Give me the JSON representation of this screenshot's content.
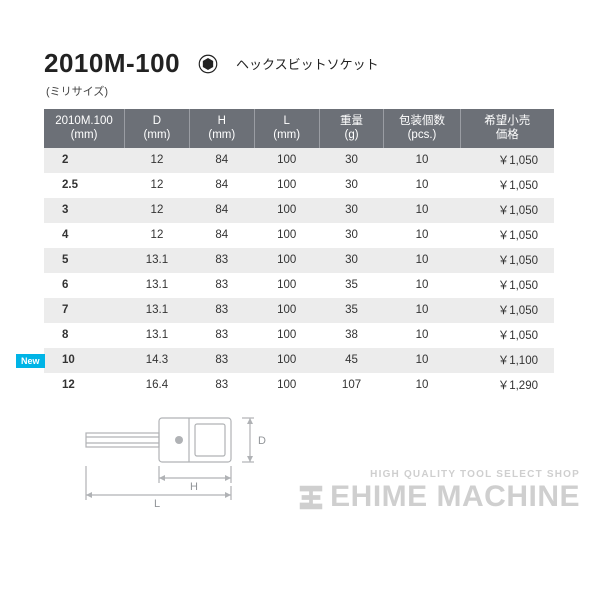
{
  "header": {
    "product_code": "2010M-100",
    "product_name": "ヘックスビットソケット",
    "subtitle": "(ミリサイズ)"
  },
  "table": {
    "columns": [
      {
        "l1": "2010M.100",
        "l2": "(mm)",
        "w": 72
      },
      {
        "l1": "D",
        "l2": "(mm)",
        "w": 58
      },
      {
        "l1": "H",
        "l2": "(mm)",
        "w": 58
      },
      {
        "l1": "L",
        "l2": "(mm)",
        "w": 58
      },
      {
        "l1": "重量",
        "l2": "(g)",
        "w": 58
      },
      {
        "l1": "包装個数",
        "l2": "(pcs.)",
        "w": 68
      },
      {
        "l1": "希望小売",
        "l2": "価格",
        "w": 84
      }
    ],
    "rows": [
      {
        "size": "2",
        "d": "12",
        "h": "84",
        "l": "100",
        "wt": "30",
        "pcs": "10",
        "price": "￥1,050",
        "new": false
      },
      {
        "size": "2.5",
        "d": "12",
        "h": "84",
        "l": "100",
        "wt": "30",
        "pcs": "10",
        "price": "￥1,050",
        "new": false
      },
      {
        "size": "3",
        "d": "12",
        "h": "84",
        "l": "100",
        "wt": "30",
        "pcs": "10",
        "price": "￥1,050",
        "new": false
      },
      {
        "size": "4",
        "d": "12",
        "h": "84",
        "l": "100",
        "wt": "30",
        "pcs": "10",
        "price": "￥1,050",
        "new": false
      },
      {
        "size": "5",
        "d": "13.1",
        "h": "83",
        "l": "100",
        "wt": "30",
        "pcs": "10",
        "price": "￥1,050",
        "new": false
      },
      {
        "size": "6",
        "d": "13.1",
        "h": "83",
        "l": "100",
        "wt": "35",
        "pcs": "10",
        "price": "￥1,050",
        "new": false
      },
      {
        "size": "7",
        "d": "13.1",
        "h": "83",
        "l": "100",
        "wt": "35",
        "pcs": "10",
        "price": "￥1,050",
        "new": false
      },
      {
        "size": "8",
        "d": "13.1",
        "h": "83",
        "l": "100",
        "wt": "38",
        "pcs": "10",
        "price": "￥1,050",
        "new": false
      },
      {
        "size": "10",
        "d": "14.3",
        "h": "83",
        "l": "100",
        "wt": "45",
        "pcs": "10",
        "price": "￥1,100",
        "new": false
      },
      {
        "size": "12",
        "d": "16.4",
        "h": "83",
        "l": "100",
        "wt": "107",
        "pcs": "10",
        "price": "￥1,290",
        "new": true
      }
    ],
    "header_bg": "#6c7077",
    "header_fg": "#ffffff",
    "row_even_bg": "#ececec",
    "row_odd_bg": "#ffffff"
  },
  "new_label": "New",
  "watermark": {
    "sub": "HIGH QUALITY TOOL SELECT SHOP",
    "main": "EHIME MACHINE",
    "color": "#cfcfcf"
  },
  "diagram": {
    "stroke": "#9fa2a6",
    "stroke_width": 1.2,
    "labels": {
      "D": "D",
      "H": "H",
      "L": "L"
    }
  }
}
